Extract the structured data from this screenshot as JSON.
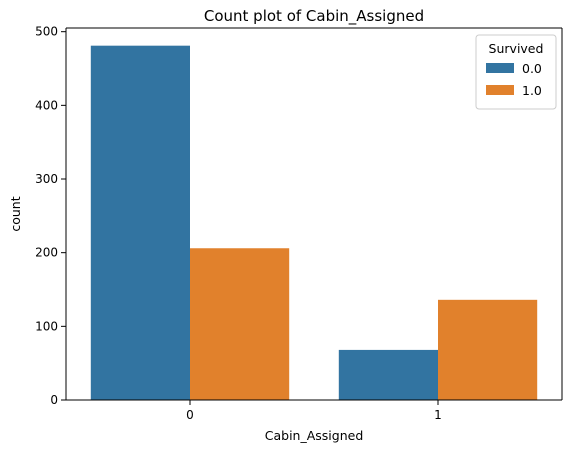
{
  "chart_data": {
    "type": "bar",
    "title": "Count plot of Cabin_Assigned",
    "xlabel": "Cabin_Assigned",
    "ylabel": "count",
    "categories": [
      "0",
      "1"
    ],
    "series": [
      {
        "name": "0.0",
        "color": "#3274a1",
        "values": [
          481,
          68
        ]
      },
      {
        "name": "1.0",
        "color": "#e1812c",
        "values": [
          206,
          136
        ]
      }
    ],
    "yticks": [
      0,
      100,
      200,
      300,
      400,
      500
    ],
    "ylim": [
      0,
      505
    ],
    "grid": false,
    "legend": {
      "title": "Survived",
      "position": "top-right"
    }
  }
}
